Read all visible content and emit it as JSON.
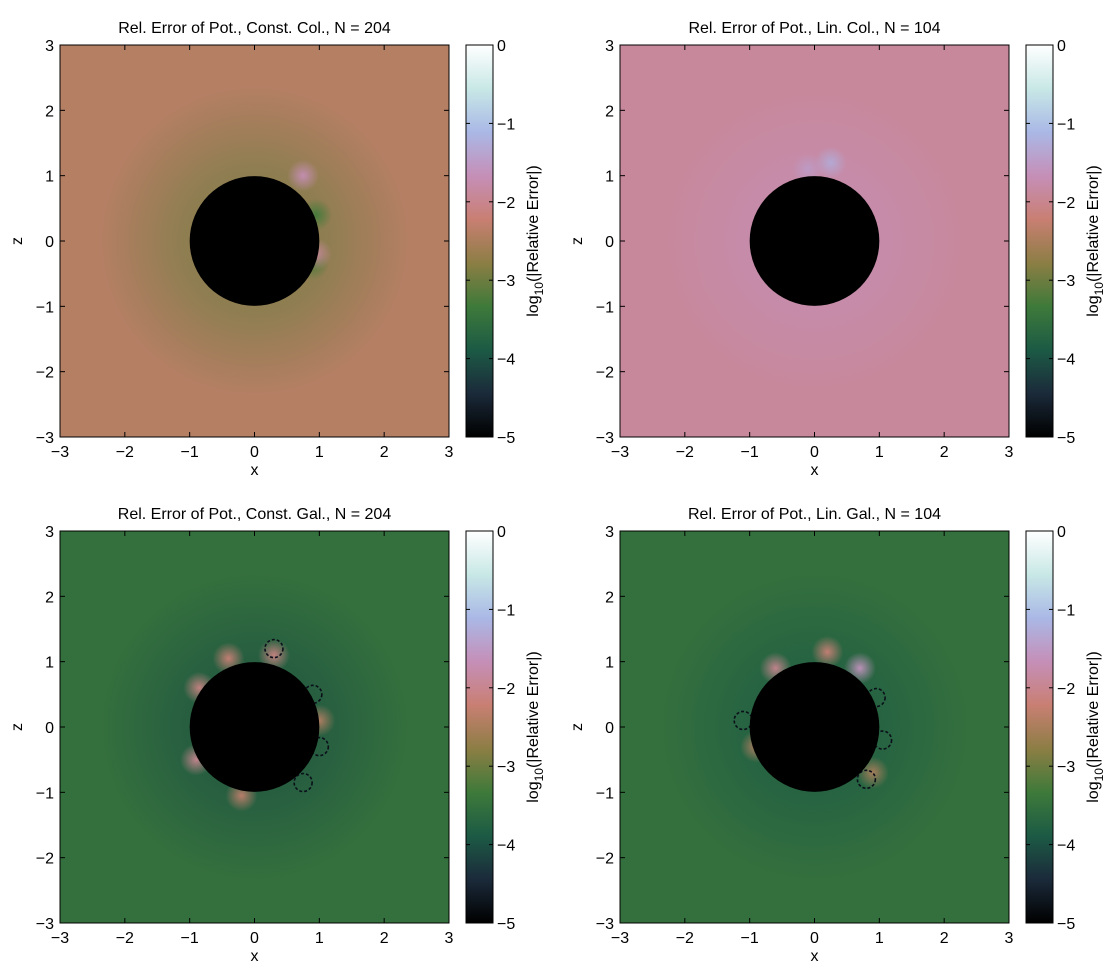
{
  "chart_data": [
    {
      "type": "heatmap",
      "title": "Rel. Error of Pot., Const. Col., N = 204",
      "xlabel": "x",
      "ylabel": "z",
      "xlim": [
        -3,
        3
      ],
      "ylim": [
        -3,
        3
      ],
      "xticks": [
        "−3",
        "−2",
        "−1",
        "0",
        "1",
        "2",
        "3"
      ],
      "yticks": [
        "3",
        "2",
        "1",
        "0",
        "−1",
        "−2",
        "−3"
      ],
      "colorbar": {
        "label": "log10(|Relative Error|)",
        "label_base": "log",
        "label_sub": "10",
        "label_rest": "(|Relative Error|)",
        "range": [
          -5,
          0
        ],
        "ticks": [
          "0",
          "−1",
          "−2",
          "−3",
          "−4",
          "−5"
        ]
      },
      "background_level": -2.4,
      "sphere": {
        "center": [
          0,
          0
        ],
        "radius": 1,
        "color": "#000000"
      },
      "grid": false
    },
    {
      "type": "heatmap",
      "title": "Rel. Error of Pot., Lin. Col., N = 104",
      "xlabel": "x",
      "ylabel": "z",
      "xlim": [
        -3,
        3
      ],
      "ylim": [
        -3,
        3
      ],
      "xticks": [
        "−3",
        "−2",
        "−1",
        "0",
        "1",
        "2",
        "3"
      ],
      "yticks": [
        "3",
        "2",
        "1",
        "0",
        "−1",
        "−2",
        "−3"
      ],
      "colorbar": {
        "label": "log10(|Relative Error|)",
        "label_base": "log",
        "label_sub": "10",
        "label_rest": "(|Relative Error|)",
        "range": [
          -5,
          0
        ],
        "ticks": [
          "0",
          "−1",
          "−2",
          "−3",
          "−4",
          "−5"
        ]
      },
      "background_level": -1.9,
      "sphere": {
        "center": [
          0,
          0
        ],
        "radius": 1,
        "color": "#000000"
      },
      "grid": false
    },
    {
      "type": "heatmap",
      "title": "Rel. Error of Pot., Const. Gal., N = 204",
      "xlabel": "x",
      "ylabel": "z",
      "xlim": [
        -3,
        3
      ],
      "ylim": [
        -3,
        3
      ],
      "xticks": [
        "−3",
        "−2",
        "−1",
        "0",
        "1",
        "2",
        "3"
      ],
      "yticks": [
        "3",
        "2",
        "1",
        "0",
        "−1",
        "−2",
        "−3"
      ],
      "colorbar": {
        "label": "log10(|Relative Error|)",
        "label_base": "log",
        "label_sub": "10",
        "label_rest": "(|Relative Error|)",
        "range": [
          -5,
          0
        ],
        "ticks": [
          "0",
          "−1",
          "−2",
          "−3",
          "−4",
          "−5"
        ]
      },
      "background_level": -3.5,
      "sphere": {
        "center": [
          0,
          0
        ],
        "radius": 1,
        "color": "#000000"
      },
      "grid": false
    },
    {
      "type": "heatmap",
      "title": "Rel. Error of Pot., Lin. Gal., N = 104",
      "xlabel": "x",
      "ylabel": "z",
      "xlim": [
        -3,
        3
      ],
      "ylim": [
        -3,
        3
      ],
      "xticks": [
        "−3",
        "−2",
        "−1",
        "0",
        "1",
        "2",
        "3"
      ],
      "yticks": [
        "3",
        "2",
        "1",
        "0",
        "−1",
        "−2",
        "−3"
      ],
      "colorbar": {
        "label": "log10(|Relative Error|)",
        "label_base": "log",
        "label_sub": "10",
        "label_rest": "(|Relative Error|)",
        "range": [
          -5,
          0
        ],
        "ticks": [
          "0",
          "−1",
          "−2",
          "−3",
          "−4",
          "−5"
        ]
      },
      "background_level": -3.5,
      "sphere": {
        "center": [
          0,
          0
        ],
        "radius": 1,
        "color": "#000000"
      },
      "grid": false
    }
  ],
  "colormap": [
    "#000000",
    "#1b2a3a",
    "#1c5a45",
    "#3e7a3a",
    "#8c7e44",
    "#c97f73",
    "#c58fb8",
    "#aab8e6",
    "#c8e8e6",
    "#ffffff"
  ]
}
